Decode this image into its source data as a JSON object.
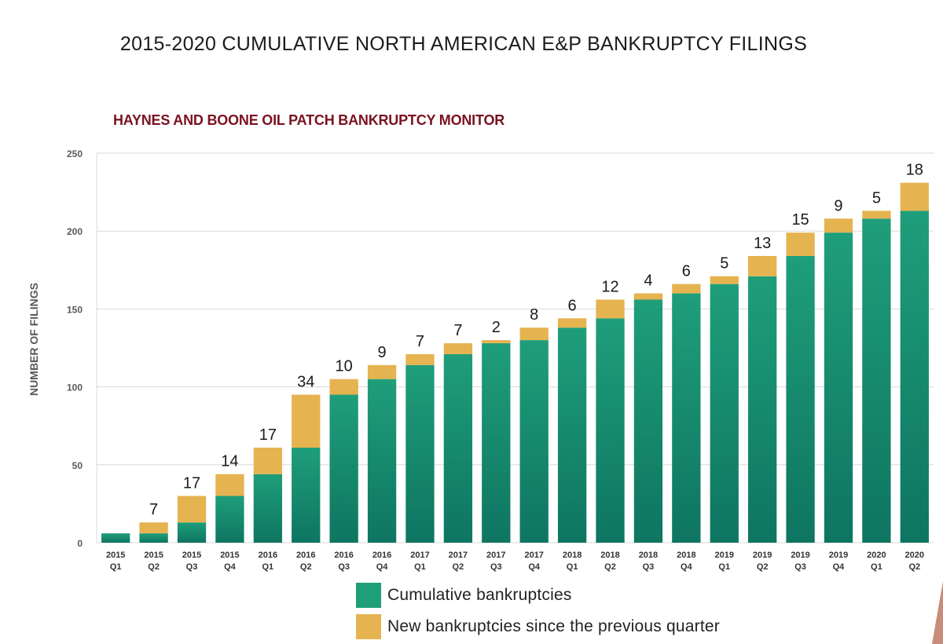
{
  "title": "2015-2020 CUMULATIVE NORTH AMERICAN E&P BANKRUPTCY FILINGS",
  "subtitle": "HAYNES AND BOONE OIL PATCH BANKRUPTCY MONITOR",
  "colors": {
    "cumulative": "#1f9e7a",
    "cumulative_dark": "#0e7561",
    "new": "#e6b351",
    "subtitle": "#7a1220",
    "grid": "#d9d9d9"
  },
  "chart_data": {
    "type": "bar",
    "stacked": true,
    "ylabel": "NUMBER OF FILINGS",
    "xlabel": "",
    "ylim": [
      0,
      250
    ],
    "yticks": [
      0,
      50,
      100,
      150,
      200,
      250
    ],
    "grid": true,
    "legend_position": "bottom",
    "categories": [
      [
        "2015",
        "Q1"
      ],
      [
        "2015",
        "Q2"
      ],
      [
        "2015",
        "Q3"
      ],
      [
        "2015",
        "Q4"
      ],
      [
        "2016",
        "Q1"
      ],
      [
        "2016",
        "Q2"
      ],
      [
        "2016",
        "Q3"
      ],
      [
        "2016",
        "Q4"
      ],
      [
        "2017",
        "Q1"
      ],
      [
        "2017",
        "Q2"
      ],
      [
        "2017",
        "Q3"
      ],
      [
        "2017",
        "Q4"
      ],
      [
        "2018",
        "Q1"
      ],
      [
        "2018",
        "Q2"
      ],
      [
        "2018",
        "Q3"
      ],
      [
        "2018",
        "Q4"
      ],
      [
        "2019",
        "Q1"
      ],
      [
        "2019",
        "Q2"
      ],
      [
        "2019",
        "Q3"
      ],
      [
        "2019",
        "Q4"
      ],
      [
        "2020",
        "Q1"
      ],
      [
        "2020",
        "Q2"
      ]
    ],
    "series": [
      {
        "name": "Cumulative bankruptcies",
        "values": [
          6,
          6,
          13,
          30,
          44,
          61,
          95,
          105,
          114,
          121,
          128,
          130,
          138,
          144,
          156,
          160,
          166,
          171,
          184,
          199,
          208,
          213
        ]
      },
      {
        "name": "New bankruptcies since the previous quarter",
        "values": [
          0,
          7,
          17,
          14,
          17,
          34,
          10,
          9,
          7,
          7,
          2,
          8,
          6,
          12,
          4,
          6,
          5,
          13,
          15,
          9,
          5,
          18
        ]
      }
    ],
    "data_labels": [
      "",
      "7",
      "17",
      "14",
      "17",
      "34",
      "10",
      "9",
      "7",
      "7",
      "2",
      "8",
      "6",
      "12",
      "4",
      "6",
      "5",
      "13",
      "15",
      "9",
      "5",
      "18"
    ]
  },
  "legend": [
    {
      "label": "Cumulative bankruptcies",
      "color": "#1f9e7a"
    },
    {
      "label": "New bankruptcies since the previous quarter",
      "color": "#e6b351"
    }
  ]
}
